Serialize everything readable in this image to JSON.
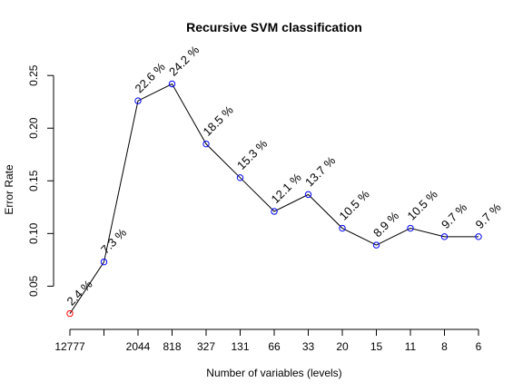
{
  "chart_data": {
    "type": "line",
    "title": "Recursive SVM classification",
    "xlabel": "Number of variables (levels)",
    "ylabel": "Error Rate",
    "categories": [
      "12777",
      "",
      "2044",
      "818",
      "327",
      "131",
      "66",
      "33",
      "20",
      "15",
      "11",
      "8",
      "6"
    ],
    "values": [
      0.024,
      0.073,
      0.226,
      0.242,
      0.185,
      0.153,
      0.121,
      0.137,
      0.105,
      0.089,
      0.105,
      0.097,
      0.097
    ],
    "labels": [
      "2.4 %",
      "7.3 %",
      "22.6 %",
      "24.2 %",
      "18.5 %",
      "15.3 %",
      "12.1 %",
      "13.7 %",
      "10.5 %",
      "8.9 %",
      "10.5 %",
      "9.7 %",
      "9.7 %"
    ],
    "yticks": [
      "0.05",
      "0.10",
      "0.15",
      "0.20",
      "0.25"
    ],
    "ytick_values": [
      0.05,
      0.1,
      0.15,
      0.2,
      0.25
    ],
    "ylim": [
      0.015,
      0.27
    ],
    "point_colors": [
      "#ff0000",
      "#0000ff",
      "#0000ff",
      "#0000ff",
      "#0000ff",
      "#0000ff",
      "#0000ff",
      "#0000ff",
      "#0000ff",
      "#0000ff",
      "#0000ff",
      "#0000ff",
      "#0000ff"
    ],
    "line_color": "#000000",
    "grid": false
  }
}
